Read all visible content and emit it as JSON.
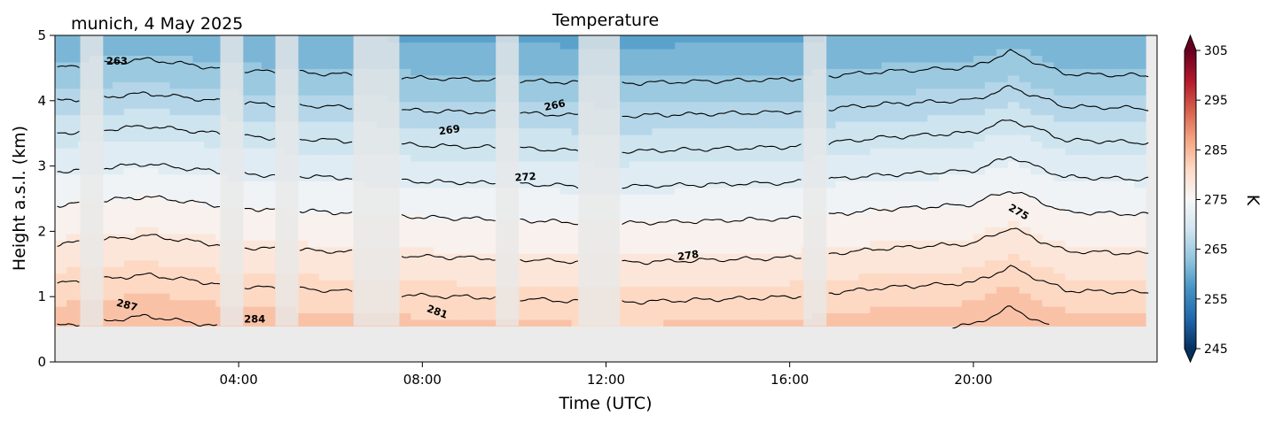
{
  "figure": {
    "title": "Temperature",
    "location_date": "munich, 4 May 2025"
  },
  "chart_data": {
    "type": "heatmap",
    "title": "Temperature",
    "annotation": "munich, 4 May 2025",
    "xlabel": "Time (UTC)",
    "ylabel": "Height a.s.l. (km)",
    "xlim_hours": [
      0,
      24
    ],
    "ylim_km": [
      0,
      5
    ],
    "x_tick_labels": [
      "04:00",
      "08:00",
      "12:00",
      "16:00",
      "20:00"
    ],
    "x_tick_hours": [
      4,
      8,
      12,
      16,
      20
    ],
    "y_tick_labels": [
      "0",
      "1",
      "2",
      "3",
      "4",
      "5"
    ],
    "y_ticks_km": [
      0,
      1,
      2,
      3,
      4,
      5
    ],
    "colorbar": {
      "label": "K",
      "colormap": "RdBu_r",
      "range": [
        245,
        305
      ],
      "tick_labels": [
        "245",
        "255",
        "265",
        "275",
        "285",
        "295",
        "305"
      ],
      "ticks": [
        245,
        255,
        265,
        275,
        285,
        295,
        305
      ],
      "level_step": 2.5,
      "extend": "both"
    },
    "no_data_below_km": 0.55,
    "contour_levels": [
      263,
      266,
      269,
      272,
      275,
      278,
      281,
      284,
      287
    ],
    "contour_labels": [
      {
        "text": "263",
        "x": 1.35,
        "y": 4.55,
        "angle": 0
      },
      {
        "text": "266",
        "x": 10.9,
        "y": 3.88,
        "angle": -12
      },
      {
        "text": "269",
        "x": 8.6,
        "y": 3.5,
        "angle": -8
      },
      {
        "text": "272",
        "x": 10.25,
        "y": 2.78,
        "angle": -4
      },
      {
        "text": "275",
        "x": 20.95,
        "y": 2.25,
        "angle": 30
      },
      {
        "text": "278",
        "x": 13.8,
        "y": 1.58,
        "angle": -8
      },
      {
        "text": "281",
        "x": 8.3,
        "y": 0.72,
        "angle": 20
      },
      {
        "text": "284",
        "x": 4.35,
        "y": 0.6,
        "angle": 0
      },
      {
        "text": "287",
        "x": 1.55,
        "y": 0.82,
        "angle": 15
      }
    ],
    "data_gaps_hours": [
      [
        0.55,
        1.05
      ],
      [
        3.6,
        4.1
      ],
      [
        4.8,
        5.3
      ],
      [
        6.5,
        7.5
      ],
      [
        9.6,
        10.1
      ],
      [
        11.4,
        12.3
      ],
      [
        16.3,
        16.8
      ]
    ],
    "surface_profile": {
      "heights_km": [
        0.55,
        1.0,
        1.5,
        2.0,
        2.5,
        3.0,
        3.5,
        4.0,
        4.5,
        5.0
      ],
      "temperature_K": [
        283.5,
        281.5,
        279.0,
        276.5,
        274.0,
        271.0,
        268.5,
        265.5,
        262.5,
        260.0
      ],
      "time_hours": [
        0,
        2,
        4,
        6,
        8,
        10,
        12,
        14,
        16,
        18,
        20,
        20.8,
        22,
        24
      ],
      "offset_K": [
        0.5,
        1.2,
        0.3,
        0.0,
        -0.4,
        -0.6,
        -0.9,
        -0.7,
        -0.5,
        0.2,
        0.6,
        1.8,
        0.0,
        -0.2
      ]
    }
  }
}
